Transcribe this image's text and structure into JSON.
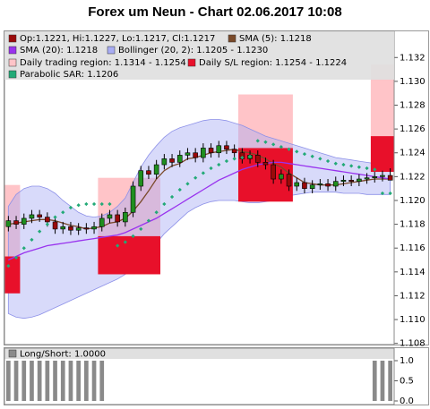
{
  "chart_data": [
    {
      "type": "candlestick",
      "title": "Forex um Neun - Chart 02.06.2017 10:08",
      "ylim": [
        1.1079,
        1.1342
      ],
      "yticks": [
        1.108,
        {
          "value": 1.11,
          "label": "1.110"
        },
        1.112,
        1.114,
        1.116,
        1.118,
        {
          "value": 1.12,
          "label": "1.120"
        },
        1.122,
        1.124,
        1.126,
        1.128,
        {
          "value": 1.13,
          "label": "1.130"
        },
        1.132
      ],
      "up_color": "#1f8f1f",
      "series": [
        {
          "name": "Op:1.1221, Hi:1.1227, Lo:1.1217, Cl:1.1217",
          "type": "candlestick",
          "color": "#9a0a0a",
          "open": [
            1.1178,
            1.1183,
            1.118,
            1.1185,
            1.1188,
            1.1186,
            1.1182,
            1.1176,
            1.1178,
            1.1175,
            1.1177,
            1.1176,
            1.1178,
            1.1185,
            1.1188,
            1.1182,
            1.119,
            1.1212,
            1.1225,
            1.1222,
            1.123,
            1.1235,
            1.1232,
            1.1238,
            1.124,
            1.1236,
            1.1244,
            1.124,
            1.1246,
            1.1243,
            1.124,
            1.1235,
            1.1238,
            1.1232,
            1.123,
            1.1218,
            1.1222,
            1.1212,
            1.1215,
            1.121,
            1.1213,
            1.1214,
            1.1212,
            1.1216,
            1.1217,
            1.1216,
            1.1218,
            1.1219,
            1.122,
            1.1221
          ],
          "high": [
            1.1187,
            1.1187,
            1.1189,
            1.1192,
            1.1192,
            1.119,
            1.1186,
            1.1182,
            1.1182,
            1.1181,
            1.1181,
            1.1182,
            1.1189,
            1.1192,
            1.1192,
            1.1194,
            1.1216,
            1.1229,
            1.1229,
            1.1234,
            1.1239,
            1.1239,
            1.1242,
            1.1244,
            1.1244,
            1.1248,
            1.1248,
            1.125,
            1.125,
            1.1247,
            1.1244,
            1.1242,
            1.1242,
            1.1236,
            1.1234,
            1.1226,
            1.1226,
            1.1219,
            1.1219,
            1.1217,
            1.1218,
            1.1218,
            1.122,
            1.1221,
            1.1221,
            1.1222,
            1.1223,
            1.1224,
            1.1225,
            1.1227
          ],
          "low": [
            1.1174,
            1.1176,
            1.1176,
            1.1181,
            1.1182,
            1.1178,
            1.1172,
            1.1172,
            1.1171,
            1.1171,
            1.1172,
            1.1172,
            1.1174,
            1.1181,
            1.1178,
            1.1178,
            1.1186,
            1.1208,
            1.1218,
            1.1218,
            1.1226,
            1.1228,
            1.1228,
            1.1234,
            1.1232,
            1.1232,
            1.1236,
            1.1236,
            1.1239,
            1.1236,
            1.1231,
            1.1231,
            1.1228,
            1.1226,
            1.1214,
            1.1214,
            1.1208,
            1.1208,
            1.1206,
            1.1206,
            1.1209,
            1.1208,
            1.1208,
            1.1212,
            1.1212,
            1.1212,
            1.1214,
            1.1215,
            1.1216,
            1.1217
          ],
          "close": [
            1.1183,
            1.118,
            1.1185,
            1.1188,
            1.1186,
            1.1182,
            1.1176,
            1.1178,
            1.1175,
            1.1177,
            1.1176,
            1.1178,
            1.1185,
            1.1188,
            1.1182,
            1.119,
            1.1212,
            1.1225,
            1.1222,
            1.123,
            1.1235,
            1.1232,
            1.1238,
            1.124,
            1.1236,
            1.1244,
            1.124,
            1.1246,
            1.1243,
            1.124,
            1.1235,
            1.1238,
            1.1232,
            1.123,
            1.1218,
            1.1222,
            1.1212,
            1.1215,
            1.121,
            1.1213,
            1.1214,
            1.1212,
            1.1216,
            1.1217,
            1.1216,
            1.1218,
            1.1219,
            1.122,
            1.1221,
            1.1217
          ]
        },
        {
          "name": "SMA (5): 1.1218",
          "type": "line",
          "color": "#7a4a2a",
          "values": [
            1.118,
            1.1181,
            1.1182,
            1.1183,
            1.1184,
            1.1184,
            1.1183,
            1.1181,
            1.1179,
            1.1178,
            1.1176,
            1.1177,
            1.1178,
            1.1181,
            1.1182,
            1.1185,
            1.1191,
            1.1199,
            1.1208,
            1.1218,
            1.1225,
            1.1229,
            1.1231,
            1.1235,
            1.1236,
            1.1238,
            1.124,
            1.1241,
            1.1242,
            1.1243,
            1.1241,
            1.124,
            1.1238,
            1.1235,
            1.1231,
            1.1228,
            1.1223,
            1.1219,
            1.1215,
            1.1214,
            1.1213,
            1.1213,
            1.1213,
            1.1214,
            1.1215,
            1.1216,
            1.1217,
            1.1218,
            1.1218,
            1.1218
          ]
        },
        {
          "name": "SMA (20): 1.1218",
          "type": "line",
          "color": "#9933ee",
          "values": [
            1.115,
            1.1153,
            1.1156,
            1.1158,
            1.116,
            1.1162,
            1.1163,
            1.1164,
            1.1165,
            1.1166,
            1.1167,
            1.1168,
            1.1169,
            1.117,
            1.1171,
            1.1173,
            1.1176,
            1.1179,
            1.1182,
            1.1185,
            1.1189,
            1.1193,
            1.1197,
            1.1201,
            1.1205,
            1.1209,
            1.1213,
            1.1217,
            1.122,
            1.1223,
            1.1226,
            1.1228,
            1.123,
            1.1231,
            1.1232,
            1.1232,
            1.1231,
            1.123,
            1.1229,
            1.1228,
            1.1227,
            1.1226,
            1.1225,
            1.1224,
            1.1223,
            1.1222,
            1.1221,
            1.122,
            1.1219,
            1.1218
          ]
        },
        {
          "name": "Bollinger (20, 2): 1.1205 - 1.1230",
          "type": "band",
          "color": "#a8acf4",
          "upper": [
            1.1195,
            1.1205,
            1.121,
            1.1212,
            1.1212,
            1.121,
            1.1206,
            1.12,
            1.1195,
            1.119,
            1.1187,
            1.1186,
            1.1187,
            1.119,
            1.1195,
            1.1202,
            1.1215,
            1.1228,
            1.1238,
            1.1246,
            1.1253,
            1.1258,
            1.1261,
            1.1263,
            1.1265,
            1.1267,
            1.1268,
            1.1268,
            1.1267,
            1.1265,
            1.1263,
            1.126,
            1.1257,
            1.1254,
            1.1252,
            1.125,
            1.1248,
            1.1246,
            1.1244,
            1.1242,
            1.124,
            1.1238,
            1.1236,
            1.1235,
            1.1234,
            1.1233,
            1.1232,
            1.1231,
            1.123,
            1.123
          ],
          "lower": [
            1.1105,
            1.1102,
            1.1101,
            1.1102,
            1.1104,
            1.1107,
            1.111,
            1.1113,
            1.1116,
            1.1119,
            1.1122,
            1.1125,
            1.1128,
            1.1131,
            1.1134,
            1.1138,
            1.1142,
            1.1148,
            1.1156,
            1.1164,
            1.1172,
            1.1178,
            1.1184,
            1.119,
            1.1194,
            1.1197,
            1.1199,
            1.12,
            1.12,
            1.12,
            1.1199,
            1.1198,
            1.1198,
            1.1199,
            1.12,
            1.1202,
            1.1204,
            1.1205,
            1.1206,
            1.1207,
            1.1207,
            1.1207,
            1.1207,
            1.1206,
            1.1206,
            1.1206,
            1.1205,
            1.1205,
            1.1205,
            1.1205
          ]
        },
        {
          "name": "Daily trading region: 1.1314 - 1.1254",
          "type": "region",
          "color": "#ffc4c8",
          "regions": [
            {
              "from": 0,
              "to": 1,
              "top": 1.1213,
              "bottom": 1.1153
            },
            {
              "from": 12,
              "to": 19,
              "top": 1.1219,
              "bottom": 1.117
            },
            {
              "from": 30,
              "to": 36,
              "top": 1.1289,
              "bottom": 1.1244
            },
            {
              "from": 47,
              "to": 49,
              "top": 1.1314,
              "bottom": 1.1254
            }
          ]
        },
        {
          "name": "Daily S/L region: 1.1254 - 1.1224",
          "type": "region",
          "color": "#e8102a",
          "regions": [
            {
              "from": 0,
              "to": 1,
              "top": 1.1153,
              "bottom": 1.1122
            },
            {
              "from": 12,
              "to": 19,
              "top": 1.117,
              "bottom": 1.1138
            },
            {
              "from": 30,
              "to": 36,
              "top": 1.1244,
              "bottom": 1.1199
            },
            {
              "from": 47,
              "to": 49,
              "top": 1.1254,
              "bottom": 1.1224
            }
          ]
        },
        {
          "name": "Parabolic SAR: 1.1206",
          "type": "dots",
          "color": "#22aa77",
          "values": [
            1.1145,
            1.1152,
            1.116,
            1.1167,
            1.1174,
            1.118,
            1.1186,
            1.119,
            1.1194,
            1.1196,
            1.1197,
            1.1197,
            1.1197,
            1.1197,
            1.1162,
            1.1165,
            1.117,
            1.1176,
            1.1183,
            1.119,
            1.1197,
            1.1203,
            1.1209,
            1.1214,
            1.1219,
            1.1223,
            1.1227,
            1.123,
            1.1233,
            1.1235,
            1.1236,
            1.1237,
            1.125,
            1.1249,
            1.1247,
            1.1245,
            1.1243,
            1.1241,
            1.1239,
            1.1237,
            1.1235,
            1.1233,
            1.1231,
            1.123,
            1.1229,
            1.1228,
            1.1227,
            1.1226,
            1.1206,
            1.1206
          ]
        }
      ]
    },
    {
      "type": "bar",
      "ylim": [
        0,
        1
      ],
      "yticks": [
        {
          "value": 0,
          "label": "0.0"
        },
        {
          "value": 0.5,
          "label": "0.5"
        },
        {
          "value": 1,
          "label": "1.0"
        }
      ],
      "series": [
        {
          "name": "Long/Short: 1.0000",
          "color": "#8a8a8a",
          "values": [
            1,
            1,
            1,
            1,
            1,
            1,
            1,
            1,
            1,
            1,
            1,
            1,
            1,
            0,
            0,
            0,
            0,
            0,
            0,
            0,
            0,
            0,
            0,
            0,
            0,
            0,
            0,
            0,
            0,
            0,
            0,
            0,
            0,
            0,
            0,
            0,
            0,
            0,
            0,
            0,
            0,
            0,
            0,
            0,
            0,
            0,
            0,
            1,
            1,
            1
          ]
        }
      ]
    }
  ]
}
